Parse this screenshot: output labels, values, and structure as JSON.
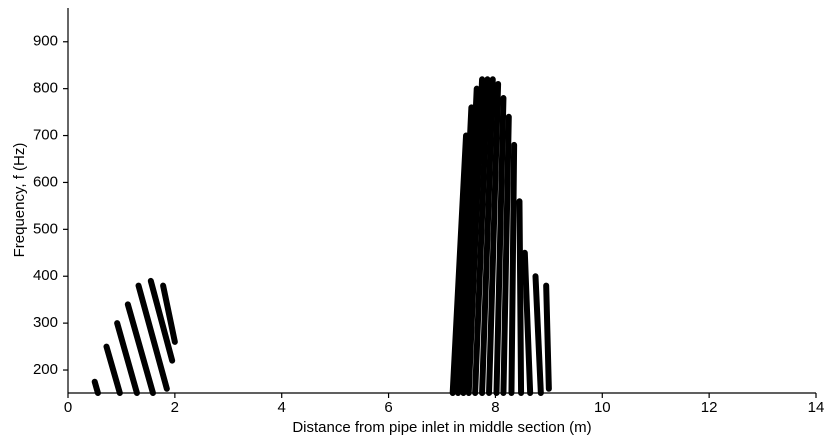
{
  "chart_data": {
    "type": "stripes",
    "xlabel": "Distance from pipe inlet in middle section (m)",
    "ylabel": "Frequency, f (Hz)",
    "xlim": [
      0,
      14
    ],
    "xticks": [
      0,
      2,
      4,
      6,
      8,
      10,
      12,
      14
    ],
    "ylim": [
      151,
      972
    ],
    "yticks": [
      200,
      300,
      400,
      500,
      600,
      700,
      800,
      900
    ],
    "color": "#000000",
    "series": [
      {
        "x": [
          0.5,
          0.56
        ],
        "y": [
          175,
          151
        ]
      },
      {
        "x": [
          0.72,
          0.97
        ],
        "y": [
          250,
          151
        ]
      },
      {
        "x": [
          0.92,
          1.29
        ],
        "y": [
          300,
          151
        ]
      },
      {
        "x": [
          1.12,
          1.59
        ],
        "y": [
          340,
          151
        ]
      },
      {
        "x": [
          1.32,
          1.85
        ],
        "y": [
          380,
          160
        ]
      },
      {
        "x": [
          1.55,
          1.95
        ],
        "y": [
          390,
          220
        ]
      },
      {
        "x": [
          1.78,
          2.0
        ],
        "y": [
          380,
          260
        ]
      },
      {
        "x": [
          7.45,
          7.2
        ],
        "y": [
          700,
          151
        ]
      },
      {
        "x": [
          7.55,
          7.3
        ],
        "y": [
          760,
          151
        ]
      },
      {
        "x": [
          7.65,
          7.4
        ],
        "y": [
          800,
          151
        ]
      },
      {
        "x": [
          7.75,
          7.5
        ],
        "y": [
          820,
          151
        ]
      },
      {
        "x": [
          7.85,
          7.62
        ],
        "y": [
          820,
          151
        ]
      },
      {
        "x": [
          7.95,
          7.75
        ],
        "y": [
          820,
          151
        ]
      },
      {
        "x": [
          8.05,
          7.88
        ],
        "y": [
          810,
          151
        ]
      },
      {
        "x": [
          8.15,
          8.02
        ],
        "y": [
          780,
          151
        ]
      },
      {
        "x": [
          8.25,
          8.15
        ],
        "y": [
          740,
          151
        ]
      },
      {
        "x": [
          8.35,
          8.3
        ],
        "y": [
          680,
          151
        ]
      },
      {
        "x": [
          8.45,
          8.48
        ],
        "y": [
          560,
          151
        ]
      },
      {
        "x": [
          8.55,
          8.65
        ],
        "y": [
          450,
          151
        ]
      },
      {
        "x": [
          8.75,
          8.85
        ],
        "y": [
          400,
          151
        ]
      },
      {
        "x": [
          8.95,
          9.0
        ],
        "y": [
          380,
          160
        ]
      }
    ]
  }
}
